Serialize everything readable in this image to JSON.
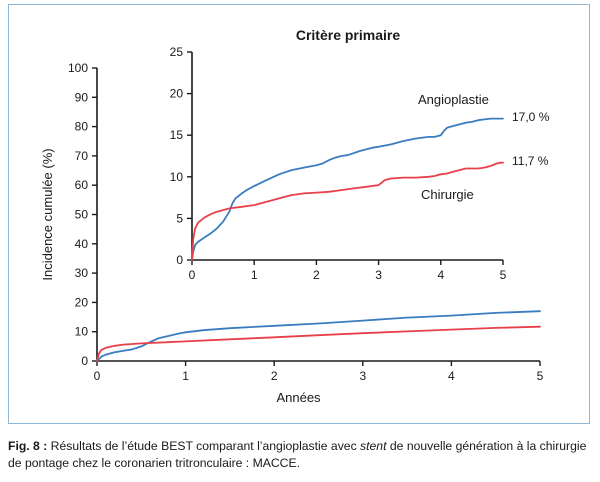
{
  "colors": {
    "angioplasty": "#3a7cc0",
    "surgery": "#e8404a",
    "frame": "#8fb8d8",
    "axis": "#1a1a1a"
  },
  "chart_data": [
    {
      "type": "line",
      "title": "",
      "xlabel": "Années",
      "ylabel": "Incidence cumulée (%)",
      "xlim": [
        0,
        5
      ],
      "ylim": [
        0,
        100
      ],
      "x_ticks": [
        "0",
        "1",
        "2",
        "3",
        "4",
        "5"
      ],
      "y_ticks": [
        "0",
        "10",
        "20",
        "30",
        "40",
        "50",
        "60",
        "70",
        "80",
        "90",
        "100"
      ],
      "grid": false,
      "series": [
        {
          "key": "angioplasty",
          "x": [
            0,
            0.05,
            0.1,
            0.2,
            0.3,
            0.4,
            0.5,
            0.6,
            0.7,
            0.8,
            0.9,
            1.0,
            1.2,
            1.5,
            2.0,
            2.5,
            3.0,
            3.5,
            4.0,
            4.5,
            5.0
          ],
          "y": [
            0,
            1.5,
            2.2,
            3.0,
            3.5,
            4.0,
            5.0,
            6.5,
            7.8,
            8.5,
            9.2,
            9.8,
            10.5,
            11.2,
            12.0,
            12.8,
            13.8,
            14.8,
            15.5,
            16.4,
            17.0
          ]
        },
        {
          "key": "surgery",
          "x": [
            0,
            0.02,
            0.05,
            0.1,
            0.2,
            0.3,
            0.5,
            0.8,
            1.0,
            1.5,
            2.0,
            2.5,
            3.0,
            3.5,
            4.0,
            4.5,
            5.0
          ],
          "y": [
            0,
            2.5,
            3.8,
            4.5,
            5.2,
            5.6,
            6.0,
            6.4,
            6.7,
            7.4,
            8.1,
            8.8,
            9.5,
            10.1,
            10.7,
            11.3,
            11.7
          ]
        }
      ]
    },
    {
      "type": "line",
      "title": "Critère primaire",
      "xlabel": "",
      "ylabel": "",
      "xlim": [
        0,
        5
      ],
      "ylim": [
        0,
        25
      ],
      "x_ticks": [
        "0",
        "1",
        "2",
        "3",
        "4",
        "5"
      ],
      "y_ticks": [
        "0",
        "5",
        "10",
        "15",
        "20",
        "25"
      ],
      "grid": false,
      "series": [
        {
          "key": "angioplasty",
          "name": "Angioplastie",
          "end_label": "17,0 %",
          "x": [
            0,
            0.02,
            0.05,
            0.1,
            0.2,
            0.3,
            0.4,
            0.5,
            0.6,
            0.65,
            0.7,
            0.8,
            0.9,
            1.0,
            1.2,
            1.4,
            1.6,
            1.8,
            2.0,
            2.1,
            2.2,
            2.3,
            2.4,
            2.5,
            2.7,
            2.9,
            3.0,
            3.2,
            3.4,
            3.6,
            3.8,
            3.9,
            4.0,
            4.05,
            4.1,
            4.2,
            4.3,
            4.4,
            4.5,
            4.6,
            4.7,
            4.8,
            4.9,
            4.95,
            5.0
          ],
          "y": [
            0,
            1.0,
            1.8,
            2.2,
            2.7,
            3.2,
            3.8,
            4.6,
            5.8,
            6.8,
            7.4,
            8.0,
            8.5,
            8.9,
            9.6,
            10.3,
            10.8,
            11.1,
            11.4,
            11.6,
            12.0,
            12.3,
            12.5,
            12.6,
            13.1,
            13.5,
            13.6,
            13.9,
            14.3,
            14.6,
            14.8,
            14.8,
            15.0,
            15.5,
            15.9,
            16.1,
            16.3,
            16.5,
            16.6,
            16.8,
            16.9,
            17.0,
            17.0,
            17.0,
            17.0
          ]
        },
        {
          "key": "surgery",
          "name": "Chirurgie",
          "end_label": "11,7 %",
          "x": [
            0,
            0.02,
            0.05,
            0.1,
            0.2,
            0.3,
            0.4,
            0.5,
            0.6,
            0.8,
            1.0,
            1.2,
            1.4,
            1.6,
            1.8,
            2.0,
            2.2,
            2.4,
            2.6,
            2.8,
            3.0,
            3.1,
            3.2,
            3.4,
            3.6,
            3.8,
            3.9,
            4.0,
            4.1,
            4.2,
            4.3,
            4.4,
            4.5,
            4.6,
            4.7,
            4.8,
            4.9,
            4.95,
            5.0
          ],
          "y": [
            0,
            2.5,
            3.8,
            4.5,
            5.1,
            5.5,
            5.8,
            6.0,
            6.2,
            6.4,
            6.6,
            7.0,
            7.4,
            7.8,
            8.0,
            8.1,
            8.2,
            8.4,
            8.6,
            8.8,
            9.0,
            9.6,
            9.8,
            9.9,
            9.9,
            10.0,
            10.1,
            10.3,
            10.4,
            10.6,
            10.8,
            11.0,
            11.0,
            11.0,
            11.1,
            11.3,
            11.6,
            11.7,
            11.7
          ]
        }
      ]
    }
  ],
  "caption": {
    "label": "Fig. 8 :",
    "text_before": " Résultats de l’étude BEST comparant l’angioplastie avec ",
    "emphasis": "stent",
    "text_after": " de nouvelle génération à la chirurgie de pontage chez le coronarien tritronculaire : MACCE."
  }
}
